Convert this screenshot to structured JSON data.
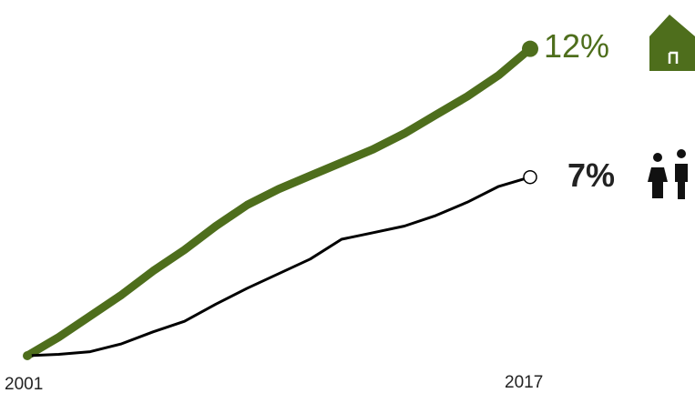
{
  "chart_data": {
    "type": "line",
    "title": "",
    "xlabel": "",
    "ylabel": "",
    "x_ticks": [
      "2001",
      "2017"
    ],
    "x": [
      2001,
      2002,
      2003,
      2004,
      2005,
      2006,
      2007,
      2008,
      2009,
      2010,
      2011,
      2012,
      2013,
      2014,
      2015,
      2016,
      2017
    ],
    "xlim": [
      2001,
      2017
    ],
    "ylim": [
      0,
      12
    ],
    "grid": false,
    "series": [
      {
        "values": [
          0,
          0.7,
          1.5,
          2.3,
          3.2,
          4.0,
          4.9,
          5.7,
          6.3,
          6.8,
          7.3,
          7.8,
          8.4,
          9.1,
          9.8,
          10.6,
          11.6
        ],
        "end_label": "12%",
        "color": "#4e6e1c",
        "marker": "filled-circle",
        "icon": "house-icon"
      },
      {
        "values": [
          0,
          0.05,
          0.15,
          0.45,
          0.9,
          1.3,
          1.95,
          2.55,
          3.1,
          3.65,
          4.4,
          4.65,
          4.9,
          5.3,
          5.8,
          6.4,
          6.75
        ],
        "end_label": "7%",
        "color": "#000000",
        "marker": "open-circle",
        "icon": "people-icon"
      }
    ]
  }
}
